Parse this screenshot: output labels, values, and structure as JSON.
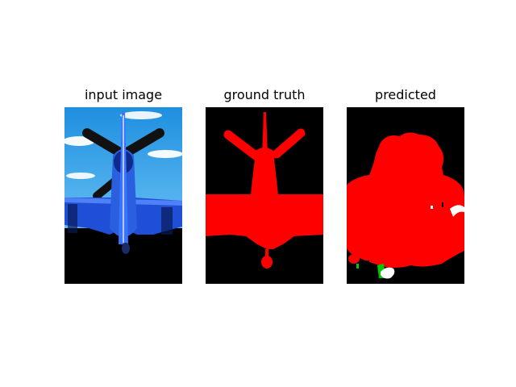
{
  "panels": [
    {
      "title": "input image"
    },
    {
      "title": "ground truth"
    },
    {
      "title": "predicted"
    }
  ],
  "colors": {
    "background": "#000000",
    "aeroplane_class": "#ff0000",
    "secondary_class": "#00c800",
    "void_or_boundary": "#ffffff",
    "sky": "#2f9be6",
    "aircraft_body": "#1f4fd6",
    "propeller": "#111111"
  }
}
